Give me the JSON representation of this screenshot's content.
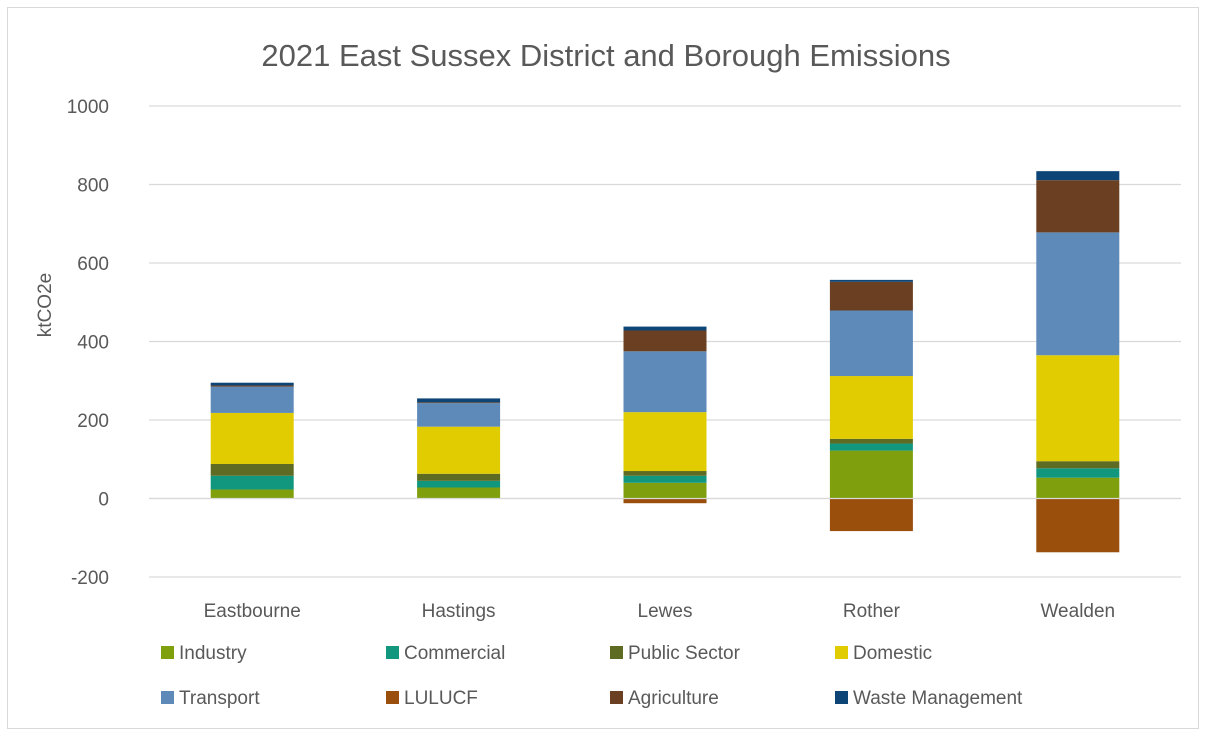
{
  "chart_data": {
    "type": "bar",
    "stacked": true,
    "title": "2021 East Sussex District and Borough Emissions",
    "ylabel": "ktCO2e",
    "xlabel": "",
    "ylim": [
      -200,
      1000
    ],
    "yticks": [
      -200,
      0,
      200,
      400,
      600,
      800,
      1000
    ],
    "ytick_labels": [
      "-200",
      "0",
      "200",
      "400",
      "600",
      "800",
      "1000"
    ],
    "grid": true,
    "legend_position": "bottom",
    "categories": [
      "Eastbourne",
      "Hastings",
      "Lewes",
      "Rother",
      "Wealden"
    ],
    "series": [
      {
        "name": "Industry",
        "color": "#7f9f0d",
        "values": [
          23,
          28,
          40,
          122,
          53
        ]
      },
      {
        "name": "Commercial",
        "color": "#12977f",
        "values": [
          35,
          17,
          18,
          18,
          24
        ]
      },
      {
        "name": "Public Sector",
        "color": "#5e6b23",
        "values": [
          30,
          18,
          12,
          12,
          18
        ]
      },
      {
        "name": "Domestic",
        "color": "#e0cc00",
        "values": [
          130,
          120,
          150,
          160,
          270
        ]
      },
      {
        "name": "Transport",
        "color": "#5d8ab8",
        "values": [
          67,
          60,
          155,
          167,
          313
        ]
      },
      {
        "name": "LULUCF",
        "color": "#9a4f0c",
        "values": [
          0,
          0,
          -12,
          -83,
          -137
        ]
      },
      {
        "name": "Agriculture",
        "color": "#6b4022",
        "values": [
          3,
          2,
          53,
          73,
          133
        ]
      },
      {
        "name": "Waste Management",
        "color": "#0e4577",
        "values": [
          7,
          10,
          10,
          5,
          23
        ]
      }
    ]
  }
}
